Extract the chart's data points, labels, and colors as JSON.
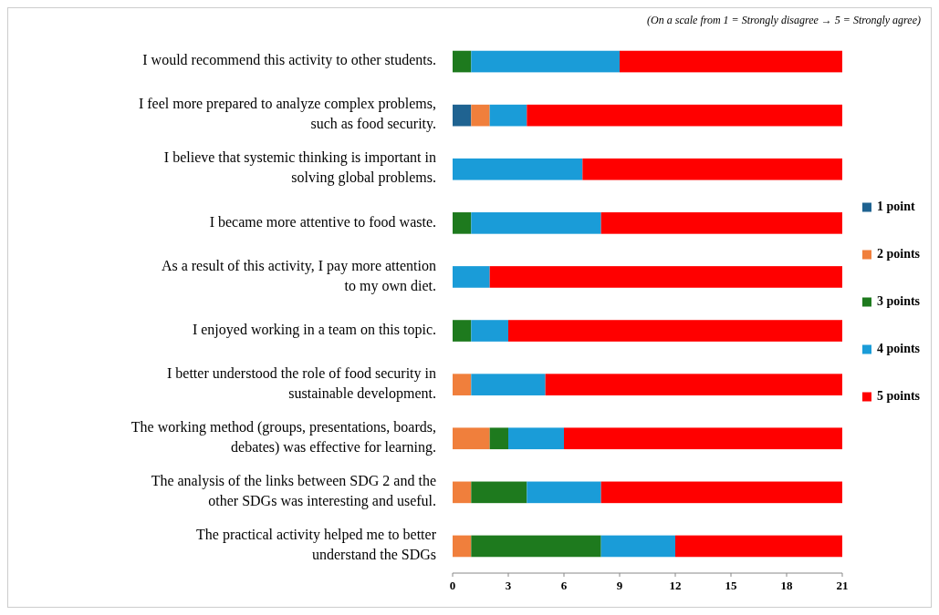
{
  "chart_data": {
    "type": "bar",
    "orientation": "horizontal",
    "stacked": true,
    "categories": [
      "I would recommend this activity to other students.",
      "I feel more prepared to analyze complex problems, such as food security.",
      "I believe that systemic thinking is important in solving global problems.",
      "I became more attentive to food waste.",
      "As a result of this activity, I pay more attention to my own diet.",
      "I enjoyed working in a team on this topic.",
      "I better understood the role of food security in sustainable development.",
      "The working method (groups, presentations, boards, debates) was effective for learning.",
      "The analysis of the links between SDG 2 and the other SDGs was interesting and useful.",
      "The practical activity helped me to better understand the SDGs"
    ],
    "series": [
      {
        "name": "1 point",
        "color": "#1f6391",
        "values": [
          0,
          1,
          0,
          0,
          0,
          0,
          0,
          0,
          0,
          0
        ]
      },
      {
        "name": "2 points",
        "color": "#f07f3c",
        "values": [
          0,
          1,
          0,
          0,
          0,
          0,
          1,
          2,
          1,
          1
        ]
      },
      {
        "name": "3 points",
        "color": "#1e7a1e",
        "values": [
          1,
          0,
          0,
          1,
          0,
          1,
          0,
          1,
          3,
          7
        ]
      },
      {
        "name": "4 points",
        "color": "#1a9cd8",
        "values": [
          8,
          2,
          7,
          7,
          2,
          2,
          4,
          3,
          4,
          4
        ]
      },
      {
        "name": "5 points",
        "color": "#ff0000",
        "values": [
          12,
          17,
          14,
          13,
          19,
          18,
          16,
          15,
          13,
          9
        ]
      }
    ],
    "xlim": [
      0,
      21
    ],
    "xticks": [
      0,
      3,
      6,
      9,
      12,
      15,
      18,
      21
    ],
    "legend": "right",
    "grid": false,
    "annotations": [
      "(On a scale from 1 = Strongly disagree → 5 = Strongly agree)"
    ]
  }
}
